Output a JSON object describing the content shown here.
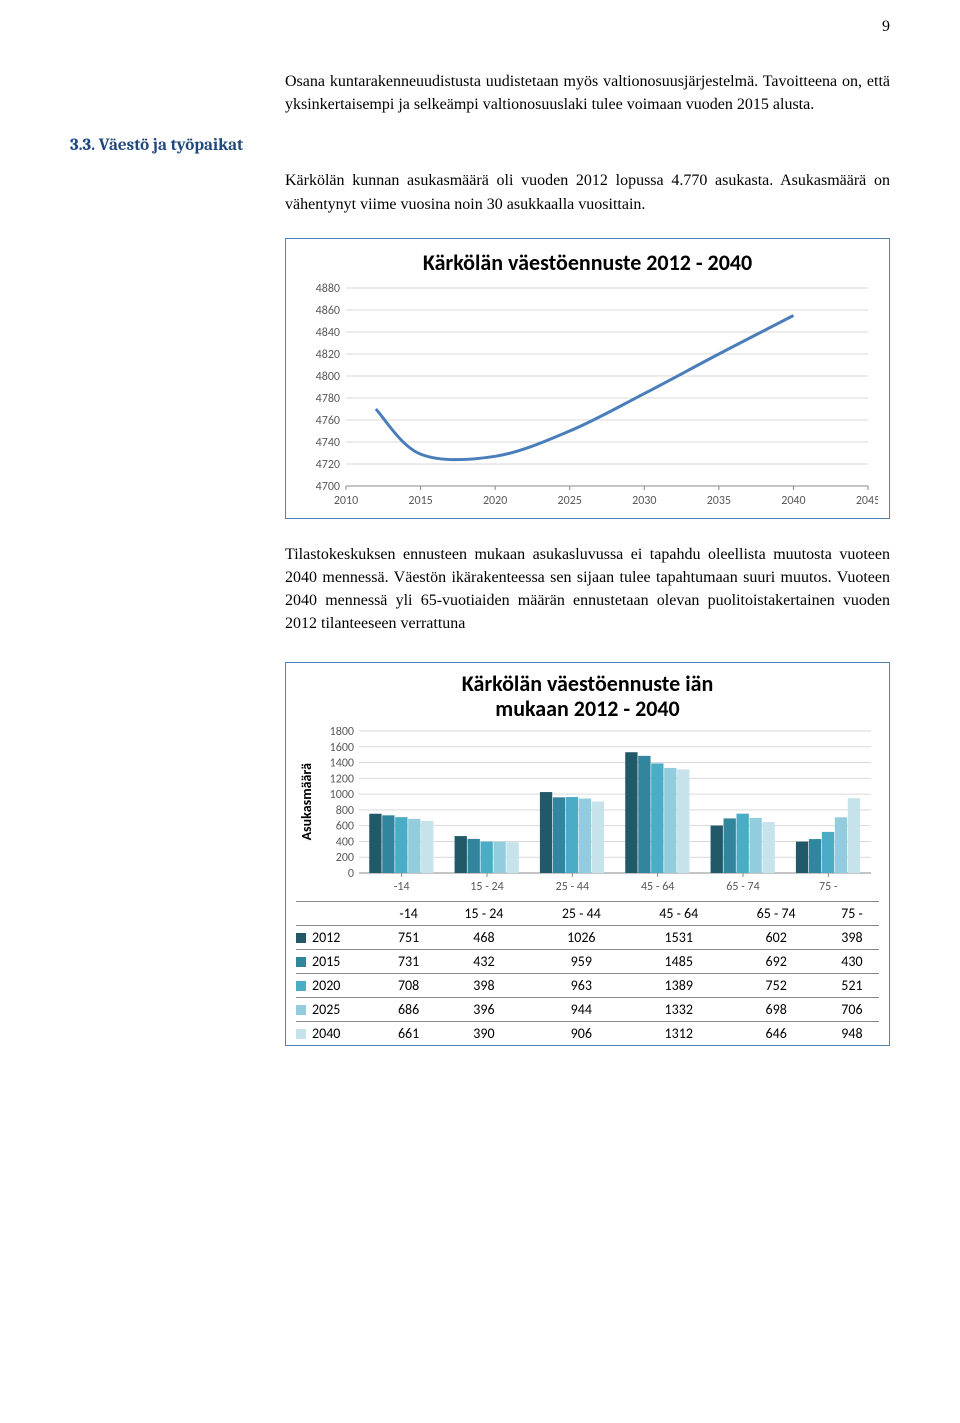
{
  "page_number": "9",
  "paragraphs": {
    "p1": "Osana kuntarakenneuudistusta uudistetaan myös valtionosuusjärjestelmä. Tavoitteena on, että yksinkertaisempi ja selkeämpi valtionosuuslaki tulee voimaan vuoden 2015 alusta.",
    "section_heading": "3.3. Väestö ja työpaikat",
    "p2": "Kärkölän kunnan asukasmäärä oli vuoden 2012 lopussa 4.770 asukasta. Asukasmäärä on vähentynyt viime vuosina noin 30 asukkaalla vuosittain.",
    "p3": "Tilastokeskuksen ennusteen mukaan asukasluvussa ei tapahdu oleellista muutosta vuoteen 2040 mennessä. Väestön ikärakenteessa sen sijaan tulee tapahtumaan suuri muutos. Vuoteen 2040 mennessä yli 65-vuotiaiden määrän ennustetaan olevan puolitoistakertainen vuoden 2012 tilanteeseen verrattuna"
  },
  "chart1": {
    "title": "Kärkölän väestöennuste 2012 - 2040",
    "type": "line",
    "x": [
      2010,
      2015,
      2020,
      2025,
      2030,
      2035,
      2040,
      2045
    ],
    "y_ticks": [
      4700,
      4720,
      4740,
      4760,
      4780,
      4800,
      4820,
      4840,
      4860,
      4880
    ],
    "ylim": [
      4700,
      4880
    ],
    "xlim": [
      2010,
      2045
    ],
    "data": [
      {
        "x": 2012,
        "y": 4770
      },
      {
        "x": 2015,
        "y": 4729
      },
      {
        "x": 2020,
        "y": 4727
      },
      {
        "x": 2025,
        "y": 4750
      },
      {
        "x": 2030,
        "y": 4784
      },
      {
        "x": 2035,
        "y": 4820
      },
      {
        "x": 2040,
        "y": 4855
      }
    ],
    "line_color": "#4a7ebb",
    "line_width": 3,
    "grid_color": "#d9d9d9",
    "axis_color": "#888888",
    "label_color": "#595959",
    "background_color": "#ffffff",
    "axis_fontsize": 12
  },
  "chart2": {
    "title_line1": "Kärkölän väestöennuste iän",
    "title_line2": "mukaan 2012 - 2040",
    "type": "grouped-bar",
    "ylabel": "Asukasmäärä",
    "categories": [
      "-14",
      "15 - 24",
      "25 - 44",
      "45 - 64",
      "65 - 74",
      "75 -"
    ],
    "y_ticks": [
      0,
      200,
      400,
      600,
      800,
      1000,
      1200,
      1400,
      1600,
      1800
    ],
    "ylim": [
      0,
      1800
    ],
    "series": [
      {
        "year": "2012",
        "color": "#215968",
        "values": [
          751,
          468,
          1026,
          1531,
          602,
          398
        ]
      },
      {
        "year": "2015",
        "color": "#31859c",
        "values": [
          731,
          432,
          959,
          1485,
          692,
          430
        ]
      },
      {
        "year": "2020",
        "color": "#4bacc6",
        "values": [
          708,
          398,
          963,
          1389,
          752,
          521
        ]
      },
      {
        "year": "2025",
        "color": "#93cddd",
        "values": [
          686,
          396,
          944,
          1332,
          698,
          706
        ]
      },
      {
        "year": "2040",
        "color": "#c6e2ea",
        "values": [
          661,
          390,
          906,
          1312,
          646,
          948
        ]
      }
    ],
    "grid_color": "#d9d9d9",
    "axis_color": "#888888",
    "label_color": "#595959",
    "axis_fontsize": 12
  }
}
